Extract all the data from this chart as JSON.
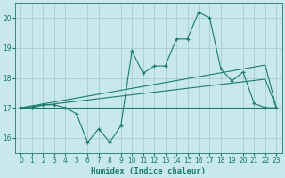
{
  "xlabel": "Humidex (Indice chaleur)",
  "x_data": [
    0,
    1,
    2,
    3,
    4,
    5,
    6,
    7,
    8,
    9,
    10,
    11,
    12,
    13,
    14,
    15,
    16,
    17,
    18,
    19,
    20,
    21,
    22,
    23
  ],
  "y_main": [
    17.0,
    17.0,
    17.1,
    17.1,
    17.0,
    16.8,
    15.85,
    16.3,
    15.85,
    16.4,
    18.9,
    18.15,
    18.4,
    18.4,
    19.3,
    19.3,
    20.2,
    20.0,
    18.3,
    17.9,
    18.2,
    17.15,
    17.0,
    17.0
  ],
  "y_flat": [
    17.0,
    17.0,
    17.0,
    17.0,
    17.0,
    17.0,
    17.0,
    17.0,
    17.0,
    17.0,
    17.0,
    17.0,
    17.0,
    17.0,
    17.0,
    17.0,
    17.0,
    17.0,
    17.0,
    17.0,
    17.0,
    17.0,
    17.0,
    17.0
  ],
  "y_upper": [
    17.0,
    17.065,
    17.13,
    17.195,
    17.26,
    17.325,
    17.39,
    17.455,
    17.52,
    17.585,
    17.65,
    17.715,
    17.78,
    17.845,
    17.91,
    17.975,
    18.04,
    18.105,
    18.17,
    18.235,
    18.3,
    18.365,
    18.43,
    17.0
  ],
  "y_lower": [
    17.0,
    17.0435,
    17.087,
    17.1305,
    17.174,
    17.2175,
    17.261,
    17.3045,
    17.348,
    17.3915,
    17.435,
    17.4785,
    17.522,
    17.5655,
    17.609,
    17.6525,
    17.696,
    17.7395,
    17.783,
    17.8265,
    17.87,
    17.9135,
    17.957,
    17.0
  ],
  "line_color": "#1a7a6e",
  "bg_color": "#c8e8eb",
  "grid_color": "#a0c8cc",
  "ylim": [
    15.5,
    20.5
  ],
  "xlim": [
    -0.5,
    23.5
  ],
  "yticks": [
    16,
    17,
    18,
    19,
    20
  ],
  "xticks": [
    0,
    1,
    2,
    3,
    4,
    5,
    6,
    7,
    8,
    9,
    10,
    11,
    12,
    13,
    14,
    15,
    16,
    17,
    18,
    19,
    20,
    21,
    22,
    23
  ]
}
